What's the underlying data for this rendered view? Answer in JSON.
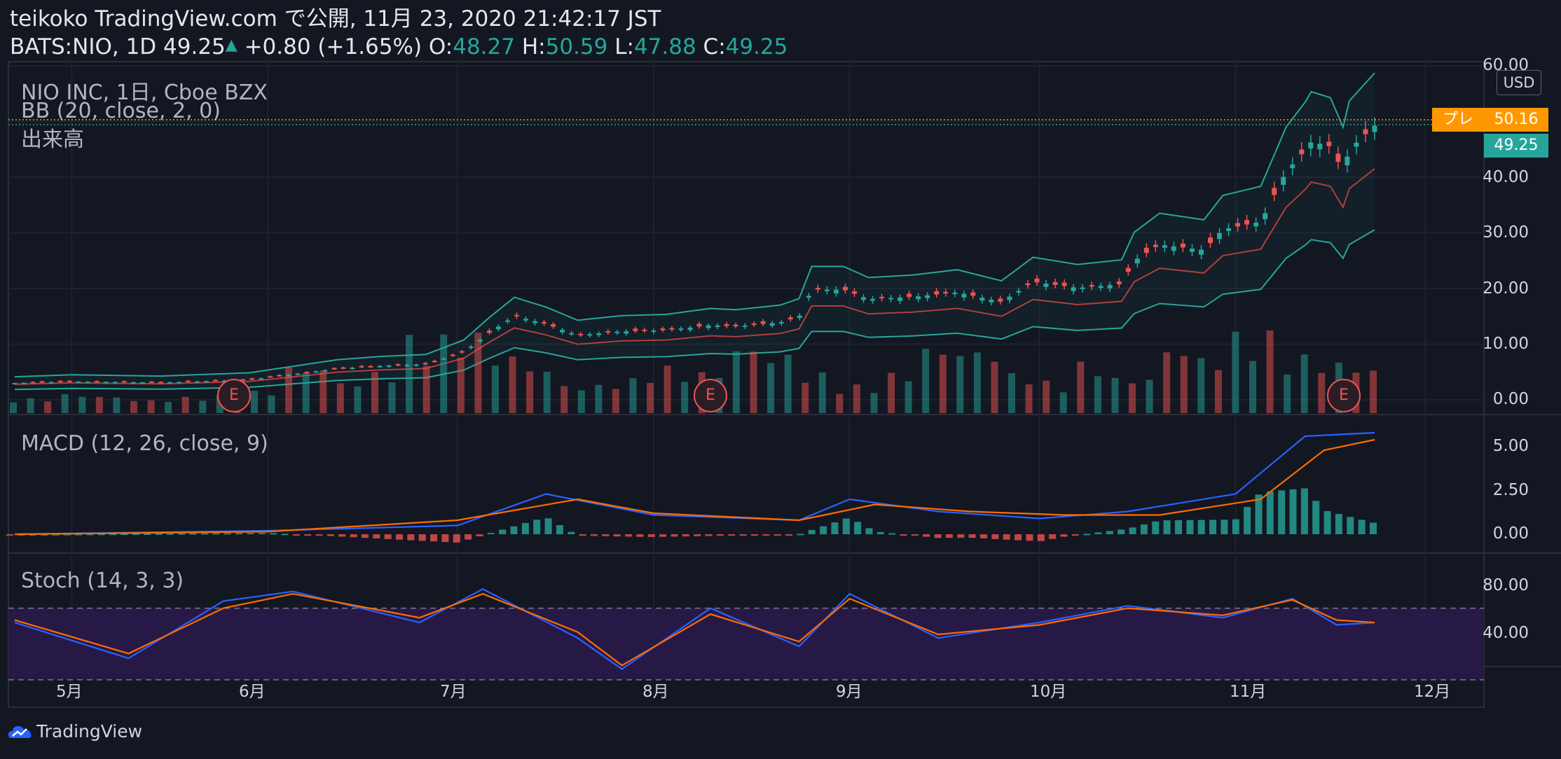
{
  "header": {
    "line1": "teikoko TradingView.com で公開, 11月 23, 2020 21:42:17 JST",
    "symbol": "BATS:NIO, 1D",
    "last": "49.25",
    "change": "+0.80 (+1.65%)",
    "o_label": "O:",
    "o": "48.27",
    "h_label": "H:",
    "h": "50.59",
    "l_label": "L:",
    "l": "47.88",
    "c_label": "C:",
    "c": "49.25"
  },
  "legend": {
    "instrument": "NIO INC, 1日, Cboe BZX",
    "bb": "BB (20, close, 2, 0)",
    "volume": "出来高",
    "macd": "MACD (12, 26, close, 9)",
    "stoch": "Stoch (14, 3, 3)"
  },
  "price_axis": {
    "currency": "USD",
    "ticks": [
      "60.00",
      "50.00",
      "40.00",
      "30.00",
      "20.00",
      "10.00",
      "0.00"
    ],
    "premarket_label": "プレ",
    "premarket_value": "50.16",
    "last_value": "49.25"
  },
  "macd_axis": {
    "ticks": [
      "5.00",
      "2.50",
      "0.00"
    ]
  },
  "stoch_axis": {
    "ticks": [
      "80.00",
      "40.00"
    ]
  },
  "time_axis": {
    "ticks": [
      "5月",
      "6月",
      "7月",
      "8月",
      "9月",
      "10月",
      "11月",
      "12月"
    ]
  },
  "earnings_marker": "E",
  "footer": {
    "brand": "TradingView"
  },
  "colors": {
    "up": "#26a69a",
    "down": "#ef5350",
    "bg": "#131722",
    "premarket": "#ff9800",
    "macd": "#2962ff",
    "signal": "#ff6d00",
    "stoch_band": "#2a1a4a"
  },
  "chart_data": [
    {
      "type": "candlestick",
      "title": "NIO INC, 1日, Cboe BZX",
      "ylim": [
        0,
        60
      ],
      "x_range": [
        "2020-04-21",
        "2020-11-23"
      ],
      "ohlc_last": {
        "open": 48.27,
        "high": 50.59,
        "low": 47.88,
        "close": 49.25
      },
      "close_series": [
        [
          "2020-04-22",
          3.0
        ],
        [
          "2020-05-01",
          3.3
        ],
        [
          "2020-05-15",
          3.1
        ],
        [
          "2020-05-29",
          3.6
        ],
        [
          "2020-06-05",
          4.6
        ],
        [
          "2020-06-12",
          5.6
        ],
        [
          "2020-06-19",
          6.1
        ],
        [
          "2020-06-26",
          6.4
        ],
        [
          "2020-07-02",
          8.6
        ],
        [
          "2020-07-06",
          12.0
        ],
        [
          "2020-07-10",
          15.1
        ],
        [
          "2020-07-15",
          13.6
        ],
        [
          "2020-07-20",
          11.6
        ],
        [
          "2020-07-27",
          12.3
        ],
        [
          "2020-08-03",
          12.5
        ],
        [
          "2020-08-10",
          13.4
        ],
        [
          "2020-08-14",
          13.2
        ],
        [
          "2020-08-21",
          13.9
        ],
        [
          "2020-08-24",
          14.9
        ],
        [
          "2020-08-26",
          19.8
        ],
        [
          "2020-08-31",
          19.8
        ],
        [
          "2020-09-04",
          18.1
        ],
        [
          "2020-09-11",
          18.5
        ],
        [
          "2020-09-18",
          19.3
        ],
        [
          "2020-09-25",
          17.6
        ],
        [
          "2020-09-30",
          21.2
        ],
        [
          "2020-10-07",
          20.1
        ],
        [
          "2020-10-14",
          20.8
        ],
        [
          "2020-10-16",
          25.0
        ],
        [
          "2020-10-20",
          27.9
        ],
        [
          "2020-10-27",
          26.9
        ],
        [
          "2020-10-30",
          30.6
        ],
        [
          "2020-11-05",
          32.0
        ],
        [
          "2020-11-09",
          41.0
        ],
        [
          "2020-11-12",
          44.8
        ],
        [
          "2020-11-13",
          46.4
        ],
        [
          "2020-11-16",
          45.5
        ],
        [
          "2020-11-18",
          41.0
        ],
        [
          "2020-11-19",
          45.0
        ],
        [
          "2020-11-23",
          49.25
        ]
      ],
      "bollinger": {
        "period": 20,
        "stddev": 2,
        "upper_end": 54.1,
        "middle_end": 39.5,
        "lower_end": 24.7
      }
    },
    {
      "type": "bar",
      "title": "出来高",
      "note": "volume histogram, relative scale",
      "values": [
        0.12,
        0.18,
        0.15,
        0.1,
        0.14,
        0.16,
        0.22,
        0.55,
        0.35,
        0.48,
        0.95,
        1.0,
        0.72,
        0.55,
        0.3,
        0.38,
        0.55,
        0.48,
        0.82,
        0.72,
        0.46,
        0.3,
        0.46,
        0.82,
        0.78,
        0.46,
        0.35,
        0.6,
        0.4,
        0.82,
        0.68,
        1.0,
        0.7,
        0.62,
        0.55
      ]
    },
    {
      "type": "line",
      "title": "MACD (12, 26, close, 9)",
      "ylim": [
        -0.5,
        6.5
      ],
      "series": [
        {
          "name": "MACD",
          "x": [
            "2020-04-22",
            "2020-06-01",
            "2020-07-01",
            "2020-07-15",
            "2020-08-01",
            "2020-08-24",
            "2020-09-01",
            "2020-09-15",
            "2020-10-01",
            "2020-10-15",
            "2020-11-01",
            "2020-11-12",
            "2020-11-23"
          ],
          "values": [
            0.0,
            0.2,
            0.5,
            2.3,
            1.1,
            0.8,
            2.0,
            1.3,
            0.9,
            1.3,
            2.3,
            5.6,
            5.8
          ]
        },
        {
          "name": "Signal",
          "x": [
            "2020-04-22",
            "2020-06-01",
            "2020-07-01",
            "2020-07-20",
            "2020-08-01",
            "2020-08-24",
            "2020-09-05",
            "2020-09-20",
            "2020-10-05",
            "2020-10-20",
            "2020-11-05",
            "2020-11-15",
            "2020-11-23"
          ],
          "values": [
            0.0,
            0.15,
            0.8,
            2.0,
            1.2,
            0.8,
            1.7,
            1.3,
            1.1,
            1.1,
            2.0,
            4.8,
            5.4
          ]
        }
      ]
    },
    {
      "type": "line",
      "title": "Stoch (14, 3, 3)",
      "ylim": [
        20,
        100
      ],
      "bands": [
        20,
        80
      ],
      "series": [
        {
          "name": "%K",
          "x": [
            "2020-04-22",
            "2020-05-10",
            "2020-05-25",
            "2020-06-05",
            "2020-06-25",
            "2020-07-05",
            "2020-07-20",
            "2020-07-27",
            "2020-08-10",
            "2020-08-24",
            "2020-09-01",
            "2020-09-15",
            "2020-10-01",
            "2020-10-15",
            "2020-10-30",
            "2020-11-10",
            "2020-11-17",
            "2020-11-23"
          ],
          "values": [
            68,
            38,
            86,
            94,
            68,
            96,
            55,
            29,
            80,
            48,
            92,
            55,
            68,
            82,
            72,
            88,
            66,
            68
          ]
        },
        {
          "name": "%D",
          "x": [
            "2020-04-22",
            "2020-05-10",
            "2020-05-25",
            "2020-06-05",
            "2020-06-25",
            "2020-07-05",
            "2020-07-20",
            "2020-07-27",
            "2020-08-10",
            "2020-08-24",
            "2020-09-01",
            "2020-09-15",
            "2020-10-01",
            "2020-10-15",
            "2020-10-30",
            "2020-11-10",
            "2020-11-17",
            "2020-11-23"
          ],
          "values": [
            70,
            42,
            80,
            92,
            72,
            92,
            60,
            32,
            75,
            52,
            88,
            58,
            66,
            80,
            74,
            87,
            70,
            68
          ]
        }
      ]
    }
  ]
}
